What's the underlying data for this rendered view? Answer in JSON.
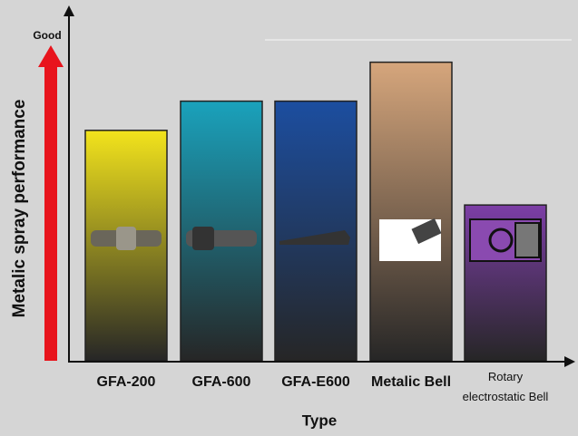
{
  "chart_data": {
    "type": "bar",
    "y_label": "Metalic spray performance",
    "y_top_label": "Good",
    "x_label": "Type",
    "categories": [
      "GFA-200",
      "GFA-600",
      "GFA-E600",
      "Metalic Bell",
      "Rotary electrostatic Bell"
    ],
    "values": [
      71,
      80,
      80,
      92,
      48
    ],
    "colors": [
      "#f3e41c",
      "#1aa2bc",
      "#1c4ea0",
      "#d6a67c",
      "#7c3ea6"
    ],
    "ylim": [
      0,
      100
    ]
  }
}
